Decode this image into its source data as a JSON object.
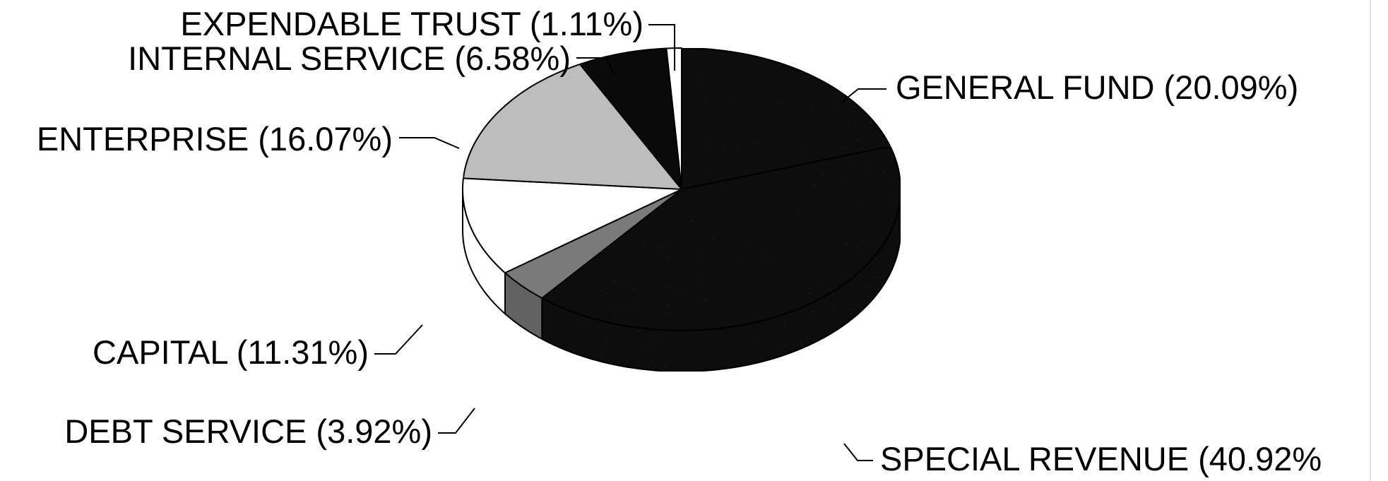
{
  "chart_data": {
    "type": "pie",
    "style": "3d",
    "legend": "none",
    "slices": [
      {
        "label": "GENERAL FUND (20.09%)",
        "value": 20.09,
        "color": "#0a0a0a",
        "texture": "speckled"
      },
      {
        "label": "SPECIAL REVENUE (40.92%",
        "value": 40.92,
        "color": "#0a0a0a",
        "texture": "speckled"
      },
      {
        "label": "DEBT SERVICE (3.92%)",
        "value": 3.92,
        "color": "#7a7a7a",
        "texture": "speckled"
      },
      {
        "label": "CAPITAL (11.31%)",
        "value": 11.31,
        "color": "#ffffff",
        "texture": "none"
      },
      {
        "label": "ENTERPRISE (16.07%)",
        "value": 16.07,
        "color": "#bdbdbd",
        "texture": "speckled"
      },
      {
        "label": "INTERNAL SERVICE (6.58%)",
        "value": 6.58,
        "color": "#0a0a0a",
        "texture": "solid"
      },
      {
        "label": "EXPENDABLE TRUST (1.11%)",
        "value": 1.11,
        "color": "#ffffff",
        "texture": "none"
      }
    ]
  }
}
